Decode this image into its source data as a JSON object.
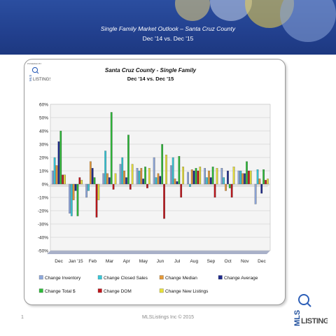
{
  "header": {
    "title": "Single Family Market Outlook – Santa Cruz County",
    "subtitle": "Dec '14 vs. Dec '15"
  },
  "footer": {
    "page_number": "1",
    "copyright": "MLSListings Inc © 2015"
  },
  "logo": {
    "powered_by": "POWERED BY",
    "mls": "MLS",
    "listings": "LISTINGS"
  },
  "colors": {
    "banner": "#22408e",
    "inventory": "#8fa8dc",
    "closed_sales": "#37c8d8",
    "median": "#e59a3a",
    "average": "#1e2a8c",
    "total_dollar": "#2ebb3a",
    "dom": "#c0161c",
    "new_listings": "#e8e13a"
  },
  "chart_data": {
    "type": "bar",
    "title": "Santa Cruz County - Single Family",
    "subtitle": "Dec '14 vs. Dec '15",
    "xlabel": "",
    "ylabel": "",
    "ylim": [
      -50,
      60
    ],
    "yticks": [
      -50,
      -40,
      -30,
      -20,
      -10,
      0,
      10,
      20,
      30,
      40,
      50,
      60
    ],
    "ytick_format": "percent",
    "grid": true,
    "legend_position": "bottom",
    "categories": [
      "Dec",
      "Jan '15",
      "Feb",
      "Mar",
      "Apr",
      "May",
      "Jun",
      "Jul",
      "Aug",
      "Sep",
      "Oct",
      "Nov",
      "Dec"
    ],
    "series": [
      {
        "name": "Change Inventory",
        "color": "#8fa8dc",
        "values": [
          10,
          -22,
          -10,
          8,
          15,
          12,
          20,
          14,
          9,
          12,
          12,
          10,
          -15
        ]
      },
      {
        "name": "Change Closed Sales",
        "color": "#37c8d8",
        "values": [
          20,
          -24,
          -5,
          25,
          20,
          10,
          5,
          20,
          -2,
          5,
          5,
          10,
          11
        ]
      },
      {
        "name": "Change Median",
        "color": "#e59a3a",
        "values": [
          14,
          -12,
          17,
          8,
          10,
          12,
          8,
          4,
          11,
          10,
          -5,
          8,
          4
        ]
      },
      {
        "name": "Change Average",
        "color": "#1e2a8c",
        "values": [
          32,
          -5,
          12,
          5,
          5,
          4,
          6,
          2,
          10,
          5,
          10,
          8,
          -7
        ]
      },
      {
        "name": "Change Total $",
        "color": "#2ebb3a",
        "values": [
          40,
          -24,
          5,
          54,
          37,
          13,
          30,
          21,
          12,
          13,
          -3,
          17,
          11
        ]
      },
      {
        "name": "Change DOM",
        "color": "#c0161c",
        "values": [
          7,
          5,
          -25,
          -4,
          -4,
          -3,
          -26,
          -10,
          10,
          -10,
          -10,
          10,
          3
        ]
      },
      {
        "name": "Change New Listings",
        "color": "#e8e13a",
        "values": [
          7,
          3,
          -12,
          8,
          15,
          12,
          22,
          13,
          13,
          12,
          13,
          10,
          4
        ]
      }
    ]
  }
}
